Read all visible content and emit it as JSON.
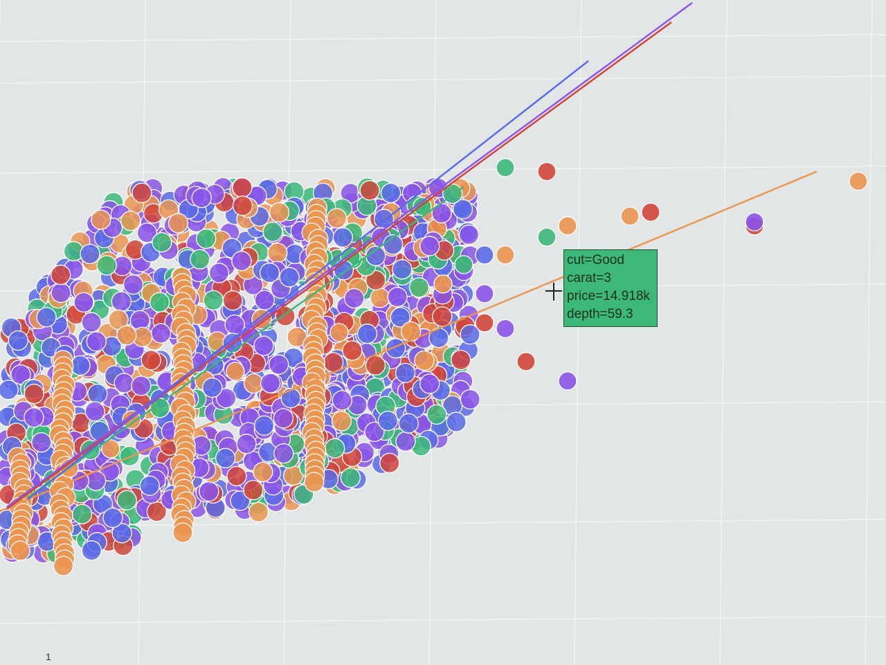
{
  "chart_data": {
    "type": "scatter",
    "x_field": "carat",
    "y_field": "price",
    "size_field": "depth",
    "color_field": "cut",
    "x_tick_labels": [
      "1"
    ],
    "grid": true,
    "colors": {
      "Ideal": "#8a55e8",
      "Premium": "#5b6be6",
      "Very Good": "#d0453a",
      "Good": "#3cb878",
      "Fair": "#ea9550"
    },
    "series": [
      {
        "color_key": "Fair",
        "points": [
          [
            0.7,
            3.0
          ],
          [
            0.9,
            4.0
          ],
          [
            1.0,
            5.5
          ],
          [
            1.5,
            8.0
          ],
          [
            2.0,
            10.0
          ],
          [
            2.5,
            12.5
          ],
          [
            2.8,
            14.0
          ],
          [
            3.1,
            15.5
          ],
          [
            3.4,
            16.0
          ],
          [
            4.5,
            17.8
          ]
        ],
        "trend": [
          [
            0.3,
            0.5
          ],
          [
            4.3,
            18.3
          ]
        ]
      },
      {
        "color_key": "Good",
        "points": [
          [
            2.8,
            18.5
          ],
          [
            3.0,
            14.918
          ],
          [
            2.6,
            13.5
          ],
          [
            2.4,
            16.5
          ]
        ],
        "trend": [
          [
            0.5,
            1.5
          ],
          [
            2.6,
            17.5
          ]
        ]
      },
      {
        "color_key": "Very Good",
        "points": [
          [
            3.0,
            18.3
          ],
          [
            2.7,
            10.5
          ],
          [
            3.5,
            16.2
          ],
          [
            4.0,
            15.5
          ],
          [
            2.9,
            8.5
          ]
        ],
        "trend": [
          [
            0.4,
            0.9
          ],
          [
            3.6,
            26.0
          ]
        ]
      },
      {
        "color_key": "Ideal",
        "points": [
          [
            2.7,
            12.0
          ],
          [
            2.8,
            10.2
          ],
          [
            4.0,
            15.7
          ],
          [
            3.1,
            7.5
          ]
        ],
        "trend": [
          [
            0.4,
            1.0
          ],
          [
            3.7,
            27.0
          ]
        ]
      },
      {
        "color_key": "Premium",
        "points": [
          [
            3.3,
            12.0
          ],
          [
            3.2,
            11.0
          ],
          [
            2.7,
            14.0
          ]
        ],
        "trend": [
          [
            0.5,
            1.4
          ],
          [
            3.2,
            24.0
          ]
        ]
      }
    ],
    "tooltip": {
      "cut": "cut=Good",
      "carat": "carat=3",
      "price": "price=14.918k",
      "depth": "depth=59.3"
    }
  }
}
